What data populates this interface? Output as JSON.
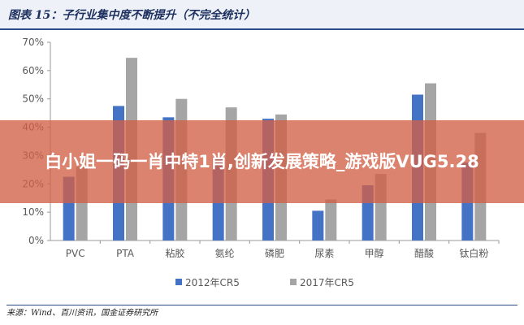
{
  "header": {
    "title": "图表 15：子行业集中度不断提升（不完全统计）"
  },
  "footer": {
    "source": "来源：Wind、百川资讯，国金证券研究所"
  },
  "overlay": {
    "banner_text": "白小姐一码一肖中特1肖,创新发展策略_游戏版VUG5.28"
  },
  "chart_data": {
    "type": "bar",
    "categories": [
      "PVC",
      "PTA",
      "粘胶",
      "氨纶",
      "磷肥",
      "尿素",
      "甲醇",
      "醋酸",
      "钛白粉"
    ],
    "series": [
      {
        "name": "2012年CR5",
        "color": "#4472c4",
        "values": [
          22.5,
          47.5,
          43.5,
          29.5,
          43,
          10.5,
          19.5,
          51.5,
          27.5
        ]
      },
      {
        "name": "2017年CR5",
        "color": "#a5a5a5",
        "values": [
          26,
          64.5,
          50,
          47,
          44.5,
          14.5,
          23.5,
          55.5,
          38
        ]
      }
    ],
    "y_ticks": [
      "0%",
      "10%",
      "20%",
      "30%",
      "40%",
      "50%",
      "60%",
      "70%"
    ],
    "ylim": [
      0,
      70
    ],
    "grid": false,
    "legend": "bottom"
  }
}
